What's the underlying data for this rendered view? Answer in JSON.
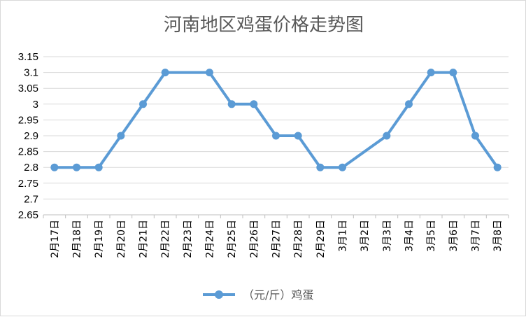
{
  "chart_data": {
    "type": "line",
    "title": "河南地区鸡蛋价格走势图",
    "xlabel": "",
    "ylabel": "",
    "categories": [
      "2月17日",
      "2月18日",
      "2月19日",
      "2月20日",
      "2月21日",
      "2月22日",
      "2月23日",
      "2月24日",
      "2月25日",
      "2月26日",
      "2月27日",
      "2月28日",
      "2月29日",
      "3月1日",
      "3月2日",
      "3月3日",
      "3月4日",
      "3月5日",
      "3月6日",
      "3月7日",
      "3月8日"
    ],
    "series": [
      {
        "name": "（元/斤）鸡蛋",
        "values": [
          2.8,
          2.8,
          2.8,
          2.9,
          3.0,
          3.1,
          null,
          3.1,
          3.0,
          3.0,
          2.9,
          2.9,
          2.8,
          2.8,
          null,
          2.9,
          3.0,
          3.1,
          3.1,
          2.9,
          2.8
        ],
        "color": "#5b9bd5"
      }
    ],
    "ylim": [
      2.65,
      3.15
    ],
    "yticks": [
      "3.15",
      "3.1",
      "3.05",
      "3",
      "2.95",
      "2.9",
      "2.85",
      "2.8",
      "2.75",
      "2.7",
      "2.65"
    ],
    "grid": true,
    "legend": "bottom",
    "gaps": "connect"
  }
}
